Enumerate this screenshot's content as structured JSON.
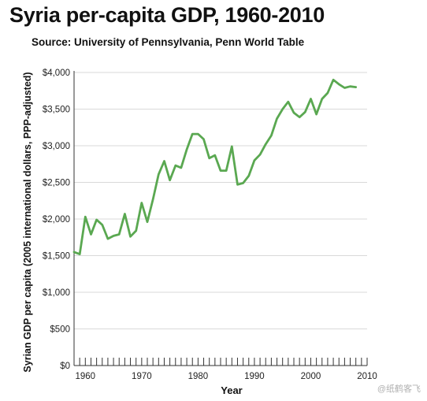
{
  "chart_data": {
    "type": "line",
    "title": "Syria per-capita GDP, 1960-2010",
    "subtitle": "Source: University of Pennsylvania, Penn World Table",
    "xlabel": "Year",
    "ylabel": "Syrian GDP per capita (2005 international dollars, PPP-adjusted)",
    "xlim": [
      1958,
      2010
    ],
    "ylim": [
      0,
      4000
    ],
    "grid": true,
    "line_color": "#5aa851",
    "grid_color": "#d9d9d9",
    "y_ticks": [
      {
        "value": 0,
        "label": "$0"
      },
      {
        "value": 500,
        "label": "$500"
      },
      {
        "value": 1000,
        "label": "$1,000"
      },
      {
        "value": 1500,
        "label": "$1,500"
      },
      {
        "value": 2000,
        "label": "$2,000"
      },
      {
        "value": 2500,
        "label": "$2,500"
      },
      {
        "value": 3000,
        "label": "$3,000"
      },
      {
        "value": 3500,
        "label": "$3,500"
      },
      {
        "value": 4000,
        "label": "$4,000"
      }
    ],
    "x_ticks": [
      {
        "value": 1960,
        "label": "1960"
      },
      {
        "value": 1970,
        "label": "1970"
      },
      {
        "value": 1980,
        "label": "1980"
      },
      {
        "value": 1990,
        "label": "1990"
      },
      {
        "value": 2000,
        "label": "2000"
      },
      {
        "value": 2010,
        "label": "2010"
      }
    ],
    "x": [
      1958,
      1959,
      1960,
      1961,
      1962,
      1963,
      1964,
      1965,
      1966,
      1967,
      1968,
      1969,
      1970,
      1971,
      1972,
      1973,
      1974,
      1975,
      1976,
      1977,
      1978,
      1979,
      1980,
      1981,
      1982,
      1983,
      1984,
      1985,
      1986,
      1987,
      1988,
      1989,
      1990,
      1991,
      1992,
      1993,
      1994,
      1995,
      1996,
      1997,
      1998,
      1999,
      2000,
      2001,
      2002,
      2003,
      2004,
      2005,
      2006,
      2007,
      2008
    ],
    "series": [
      {
        "values": [
          1550,
          1520,
          2030,
          1790,
          1990,
          1920,
          1730,
          1770,
          1790,
          2070,
          1760,
          1840,
          2220,
          1960,
          2270,
          2610,
          2790,
          2530,
          2730,
          2700,
          2950,
          3160,
          3160,
          3090,
          2830,
          2870,
          2660,
          2660,
          2990,
          2470,
          2490,
          2590,
          2800,
          2880,
          3020,
          3140,
          3370,
          3500,
          3600,
          3450,
          3390,
          3460,
          3640,
          3430,
          3640,
          3720,
          3900,
          3840,
          3790,
          3810,
          3800
        ]
      }
    ]
  },
  "watermark": "@纸鹤客飞"
}
